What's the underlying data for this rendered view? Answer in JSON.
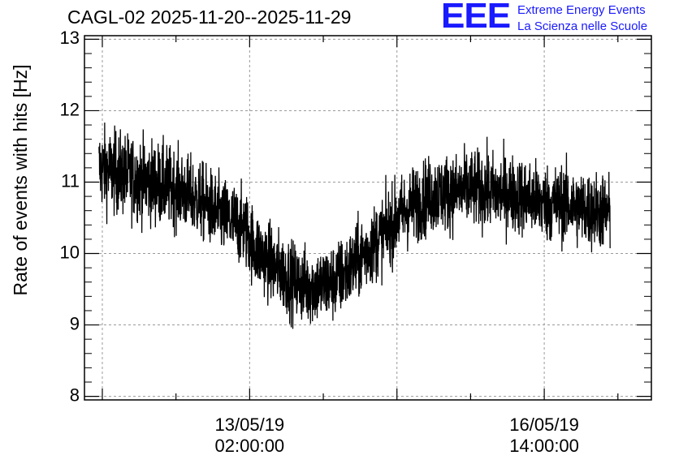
{
  "title": "CAGL-02 2025-11-20--2025-11-29",
  "logo": {
    "mark": "EEE",
    "line1": "Extreme Energy Events",
    "line2": "La Scienza nelle Scuole",
    "color": "#1a1aff"
  },
  "chart_data": {
    "type": "line",
    "title": "CAGL-02 2025-11-20--2025-11-29",
    "ylabel": "Rate of events with hits [Hz]",
    "xlabel": "",
    "ylim": [
      7.95,
      13.05
    ],
    "yticks": [
      8,
      9,
      10,
      11,
      12,
      13
    ],
    "grid": true,
    "line_color": "#000000",
    "x_range_hours": [
      -74,
      180
    ],
    "x_tick_labels": [
      {
        "x_hours": 0,
        "date": "13/05/19",
        "time": "02:00:00"
      },
      {
        "x_hours": 132,
        "date": "16/05/19",
        "time": "14:00:00"
      }
    ],
    "series": [
      {
        "x_hours": [
          -67.5,
          -62,
          -56,
          -50,
          -44,
          -38,
          -32,
          -26,
          -20,
          -14,
          -8,
          -2,
          2,
          8,
          14,
          20,
          26,
          32,
          38,
          44,
          50,
          56,
          62,
          68,
          74,
          80,
          86,
          92,
          98,
          104,
          110,
          116,
          122,
          128,
          134,
          140,
          146,
          152,
          158,
          161.5
        ],
        "mean": [
          11.2,
          11.15,
          11.1,
          11.05,
          11.0,
          10.95,
          10.9,
          10.8,
          10.7,
          10.55,
          10.45,
          10.35,
          10.1,
          9.9,
          9.75,
          9.6,
          9.55,
          9.55,
          9.6,
          9.75,
          9.95,
          10.15,
          10.35,
          10.55,
          10.7,
          10.8,
          10.85,
          10.85,
          10.9,
          10.9,
          10.85,
          10.85,
          10.8,
          10.75,
          10.7,
          10.7,
          10.65,
          10.6,
          10.6,
          10.55
        ],
        "spread": [
          0.75,
          0.75,
          0.75,
          0.75,
          0.75,
          0.75,
          0.7,
          0.7,
          0.7,
          0.7,
          0.7,
          0.7,
          0.7,
          0.7,
          0.7,
          0.7,
          0.7,
          0.7,
          0.7,
          0.7,
          0.7,
          0.7,
          0.7,
          0.7,
          0.7,
          0.7,
          0.7,
          0.7,
          0.7,
          0.7,
          0.7,
          0.7,
          0.7,
          0.7,
          0.7,
          0.7,
          0.7,
          0.7,
          0.7,
          0.7
        ]
      }
    ]
  }
}
